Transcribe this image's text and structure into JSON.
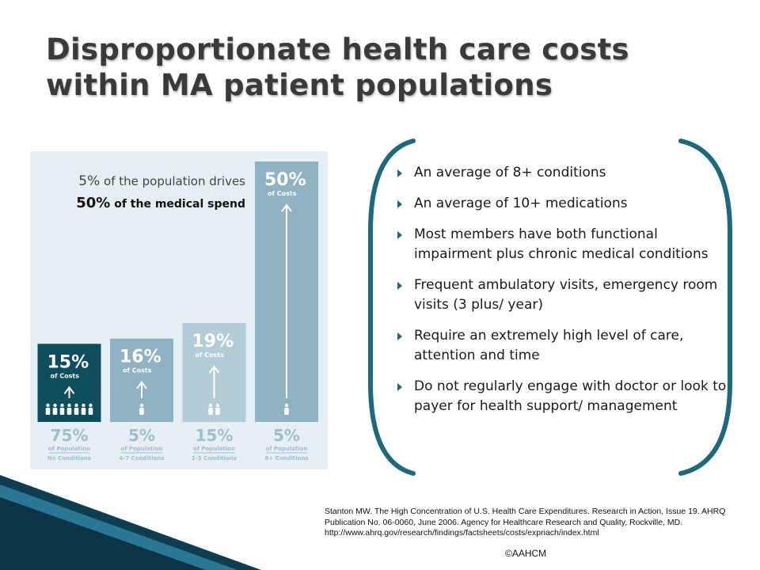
{
  "title": "Disproportionate health care costs within MA patient populations",
  "callout": {
    "line1_pct": "5%",
    "line1_text": " of the population drives",
    "line2_pct": "50%",
    "line2_text": " of the medical spend"
  },
  "chart_data": {
    "type": "bar",
    "title": "",
    "xlabel": "",
    "ylabel": "",
    "ylim": [
      0,
      50
    ],
    "grid": false,
    "colors": [
      "#0e4d5c",
      "#8fb3c2",
      "#b3cdd8",
      "#8fb3c2"
    ],
    "background": "#e6eff3",
    "categories": [
      "No Conditions",
      "4-7 Conditions",
      "1-3 Conditions",
      "8+ Conditions"
    ],
    "values": [
      15,
      16,
      19,
      50
    ],
    "value_labels": [
      "15%",
      "16%",
      "19%",
      "50%"
    ],
    "value_sublabel": "of Costs",
    "population_values": [
      75,
      5,
      15,
      5
    ],
    "population_labels": [
      "75%",
      "5%",
      "15%",
      "5%"
    ],
    "population_sublabel": "of Population",
    "people_icon_counts": [
      7,
      1,
      2,
      1
    ]
  },
  "bullets": [
    "An average of 8+ conditions",
    "An average of 10+ medications",
    "Most members have both functional impairment plus chronic medical conditions",
    "Frequent ambulatory visits, emergency room visits (3 plus/ year)",
    "Require an extremely high level of care, attention and time",
    "Do not regularly engage with doctor or look to payer for health support/ management"
  ],
  "citation": "Stanton MW. The High Concentration of U.S. Health Care Expenditures. Research in Action, Issue 19. AHRQ Publication No. 06-0060, June 2006.  Agency for Healthcare Research and Quality, Rockville, MD. http://www.ahrq.gov/research/findings/factsheets/costs/expriach/index.html",
  "copyright": "©AAHCM",
  "accent_color": "#1c6a7e"
}
